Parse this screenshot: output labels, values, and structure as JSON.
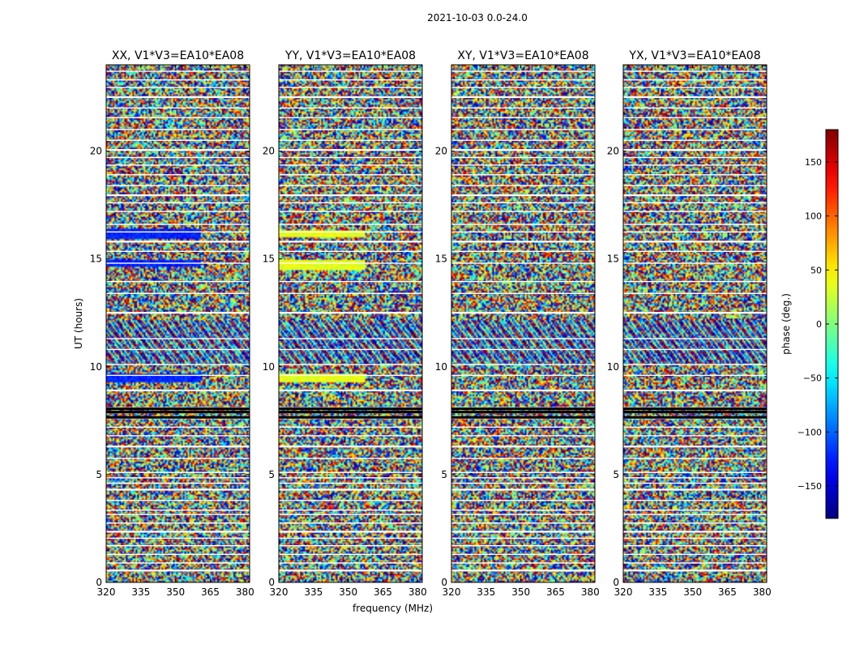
{
  "figure": {
    "suptitle": "2021-10-03 0.0-24.0",
    "colorbar": {
      "label": "phase (deg.)",
      "ticks": [
        150,
        100,
        50,
        0,
        -50,
        -100,
        -150
      ],
      "range": [
        -180,
        180
      ]
    }
  },
  "chart_data": [
    {
      "type": "heatmap",
      "title": "XX, V1*V3=EA10*EA08",
      "xlabel": "",
      "ylabel": "UT (hours)",
      "xlim": [
        320,
        382
      ],
      "ylim": [
        0,
        24
      ],
      "xticks": [
        320,
        335,
        350,
        365,
        380
      ],
      "yticks": [
        0,
        5,
        10,
        15,
        20
      ],
      "zlabel": "phase (deg.)",
      "zlim": [
        -180,
        180
      ]
    },
    {
      "type": "heatmap",
      "title": "YY, V1*V3=EA10*EA08",
      "xlabel": "frequency (MHz)",
      "ylabel": "",
      "xlim": [
        320,
        382
      ],
      "ylim": [
        0,
        24
      ],
      "xticks": [
        320,
        335,
        350,
        365,
        380
      ],
      "yticks": [
        0,
        5,
        10,
        15,
        20
      ],
      "zlabel": "phase (deg.)",
      "zlim": [
        -180,
        180
      ]
    },
    {
      "type": "heatmap",
      "title": "XY, V1*V3=EA10*EA08",
      "xlabel": "",
      "ylabel": "",
      "xlim": [
        320,
        382
      ],
      "ylim": [
        0,
        24
      ],
      "xticks": [
        320,
        335,
        350,
        365,
        380
      ],
      "yticks": [
        0,
        5,
        10,
        15,
        20
      ],
      "zlabel": "phase (deg.)",
      "zlim": [
        -180,
        180
      ]
    },
    {
      "type": "heatmap",
      "title": "YX, V1*V3=EA10*EA08",
      "xlabel": "",
      "ylabel": "",
      "xlim": [
        320,
        382
      ],
      "ylim": [
        0,
        24
      ],
      "xticks": [
        320,
        335,
        350,
        365,
        380
      ],
      "yticks": [
        0,
        5,
        10,
        15,
        20
      ],
      "zlabel": "phase (deg.)",
      "zlim": [
        -180,
        180
      ]
    }
  ]
}
